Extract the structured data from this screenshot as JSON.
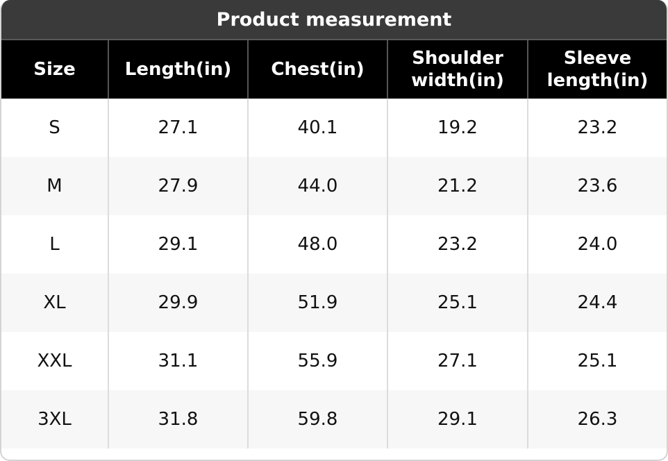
{
  "title": "Product measurement",
  "headers": [
    "Size",
    "Length(in)",
    "Chest(in)",
    "Shoulder width(in)",
    "Sleeve length(in)"
  ],
  "header_lines": [
    [
      "Size"
    ],
    [
      "Length(in)"
    ],
    [
      "Chest(in)"
    ],
    [
      "Shoulder",
      "width(in)"
    ],
    [
      "Sleeve",
      "length(in)"
    ]
  ],
  "rows": [
    [
      "S",
      "27.1",
      "40.1",
      "19.2",
      "23.2"
    ],
    [
      "M",
      "27.9",
      "44.0",
      "21.2",
      "23.6"
    ],
    [
      "L",
      "29.1",
      "48.0",
      "23.2",
      "24.0"
    ],
    [
      "XL",
      "29.9",
      "51.9",
      "25.1",
      "24.4"
    ],
    [
      "XXL",
      "31.1",
      "55.9",
      "27.1",
      "25.1"
    ],
    [
      "3XL",
      "31.8",
      "59.8",
      "29.1",
      "26.3"
    ]
  ]
}
